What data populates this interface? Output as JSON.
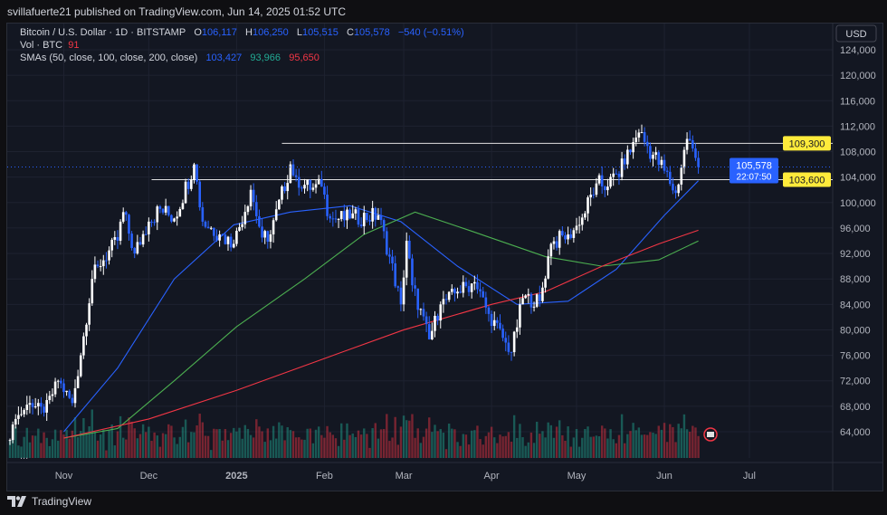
{
  "publisher_line": "svillafuerte21 published on TradingView.com, Jun 14, 2025 01:52 UTC",
  "legend": {
    "symbol": "Bitcoin / U.S. Dollar · 1D · BITSTAMP",
    "o_label": "O",
    "o": "106,117",
    "h_label": "H",
    "h": "106,250",
    "l_label": "L",
    "l": "105,515",
    "c_label": "C",
    "c": "105,578",
    "change": "−540 (−0.51%)",
    "vol_label": "Vol · BTC",
    "vol": "91",
    "sma_label": "SMAs (50, close, 100, close, 200, close)",
    "sma50": "103,427",
    "sma100": "93,966",
    "sma200": "95,650"
  },
  "more": "...",
  "footer": {
    "brand": "TradingView"
  },
  "chart_data": {
    "type": "candlestick",
    "title": "Bitcoin / U.S. Dollar · 1D · BITSTAMP",
    "currency": "USD",
    "ylim": [
      62000,
      126000
    ],
    "yticks": [
      "124,000",
      "120,000",
      "116,000",
      "112,000",
      "108,000",
      "104,000",
      "100,000",
      "96,000",
      "92,000",
      "88,000",
      "84,000",
      "80,000",
      "76,000",
      "72,000",
      "68,000",
      "64,000"
    ],
    "xticks": [
      {
        "label": "Nov",
        "date": "2024-11-01"
      },
      {
        "label": "Dec",
        "date": "2024-12-01"
      },
      {
        "label": "2025",
        "date": "2025-01-01"
      },
      {
        "label": "Feb",
        "date": "2025-02-01"
      },
      {
        "label": "Mar",
        "date": "2025-03-01"
      },
      {
        "label": "Apr",
        "date": "2025-04-01"
      },
      {
        "label": "May",
        "date": "2025-05-01"
      },
      {
        "label": "Jun",
        "date": "2025-06-01"
      },
      {
        "label": "Jul",
        "date": "2025-07-01"
      }
    ],
    "start_date": "2024-10-13",
    "close_path": [
      [
        "2024-10-13",
        62700
      ],
      [
        "2024-10-15",
        66000
      ],
      [
        "2024-10-20",
        68500
      ],
      [
        "2024-10-25",
        67000
      ],
      [
        "2024-10-30",
        72000
      ],
      [
        "2024-11-04",
        68500
      ],
      [
        "2024-11-07",
        76000
      ],
      [
        "2024-11-11",
        88000
      ],
      [
        "2024-11-13",
        90000
      ],
      [
        "2024-11-20",
        94000
      ],
      [
        "2024-11-22",
        98500
      ],
      [
        "2024-11-26",
        92000
      ],
      [
        "2024-12-01",
        97000
      ],
      [
        "2024-12-05",
        99000
      ],
      [
        "2024-12-10",
        97500
      ],
      [
        "2024-12-17",
        106000
      ],
      [
        "2024-12-20",
        97000
      ],
      [
        "2024-12-26",
        95000
      ],
      [
        "2024-12-31",
        93500
      ],
      [
        "2025-01-06",
        102000
      ],
      [
        "2025-01-10",
        94500
      ],
      [
        "2025-01-13",
        95000
      ],
      [
        "2025-01-20",
        106000
      ],
      [
        "2025-01-22",
        104000
      ],
      [
        "2025-01-27",
        102000
      ],
      [
        "2025-01-31",
        102500
      ],
      [
        "2025-02-03",
        97500
      ],
      [
        "2025-02-10",
        97500
      ],
      [
        "2025-02-20",
        98000
      ],
      [
        "2025-02-24",
        91500
      ],
      [
        "2025-02-28",
        84000
      ],
      [
        "2025-03-02",
        94000
      ],
      [
        "2025-03-04",
        87000
      ],
      [
        "2025-03-10",
        78500
      ],
      [
        "2025-03-14",
        84000
      ],
      [
        "2025-03-20",
        86000
      ],
      [
        "2025-03-26",
        87500
      ],
      [
        "2025-03-31",
        82500
      ],
      [
        "2025-04-06",
        78000
      ],
      [
        "2025-04-08",
        76500
      ],
      [
        "2025-04-12",
        85000
      ],
      [
        "2025-04-18",
        84500
      ],
      [
        "2025-04-22",
        93500
      ],
      [
        "2025-04-28",
        95000
      ],
      [
        "2025-05-02",
        96500
      ],
      [
        "2025-05-08",
        103000
      ],
      [
        "2025-05-12",
        102500
      ],
      [
        "2025-05-18",
        106000
      ],
      [
        "2025-05-21",
        109500
      ],
      [
        "2025-05-23",
        111000
      ],
      [
        "2025-05-28",
        107500
      ],
      [
        "2025-06-01",
        105000
      ],
      [
        "2025-06-05",
        101500
      ],
      [
        "2025-06-09",
        110000
      ],
      [
        "2025-06-11",
        108500
      ],
      [
        "2025-06-13",
        105578
      ]
    ],
    "series": [
      {
        "name": "SMA 50",
        "color": "#2962ff",
        "points": [
          [
            "2024-11-01",
            64000
          ],
          [
            "2024-11-20",
            74000
          ],
          [
            "2024-12-10",
            88000
          ],
          [
            "2024-12-31",
            96500
          ],
          [
            "2025-01-20",
            98500
          ],
          [
            "2025-02-10",
            99500
          ],
          [
            "2025-02-28",
            97000
          ],
          [
            "2025-03-20",
            90000
          ],
          [
            "2025-04-10",
            84000
          ],
          [
            "2025-04-28",
            84500
          ],
          [
            "2025-05-15",
            89500
          ],
          [
            "2025-06-01",
            98000
          ],
          [
            "2025-06-13",
            103427
          ]
        ]
      },
      {
        "name": "SMA 100",
        "color": "#4caf50",
        "points": [
          [
            "2024-11-01",
            63000
          ],
          [
            "2024-11-20",
            64500
          ],
          [
            "2024-12-10",
            72000
          ],
          [
            "2025-01-01",
            80500
          ],
          [
            "2025-01-25",
            88000
          ],
          [
            "2025-02-15",
            95000
          ],
          [
            "2025-03-05",
            98500
          ],
          [
            "2025-03-25",
            95500
          ],
          [
            "2025-04-20",
            91500
          ],
          [
            "2025-05-10",
            90000
          ],
          [
            "2025-05-30",
            91000
          ],
          [
            "2025-06-13",
            93966
          ]
        ]
      },
      {
        "name": "SMA 200",
        "color": "#f23645",
        "points": [
          [
            "2024-11-01",
            63000
          ],
          [
            "2024-12-01",
            66000
          ],
          [
            "2025-01-01",
            70500
          ],
          [
            "2025-02-01",
            75500
          ],
          [
            "2025-03-01",
            80000
          ],
          [
            "2025-04-01",
            84000
          ],
          [
            "2025-04-20",
            86000
          ],
          [
            "2025-05-10",
            90000
          ],
          [
            "2025-05-30",
            93500
          ],
          [
            "2025-06-13",
            95650
          ]
        ]
      }
    ],
    "levels": [
      {
        "label": "109,300",
        "value": 109300,
        "from": "2025-01-17",
        "color": "#ffeb3b"
      },
      {
        "label": "103,600",
        "value": 103600,
        "from": "2024-12-02",
        "color": "#ffeb3b"
      }
    ],
    "last_price": {
      "label": "105,578",
      "value": 105578,
      "countdown": "22:07:50",
      "color": "#2962ff"
    }
  }
}
